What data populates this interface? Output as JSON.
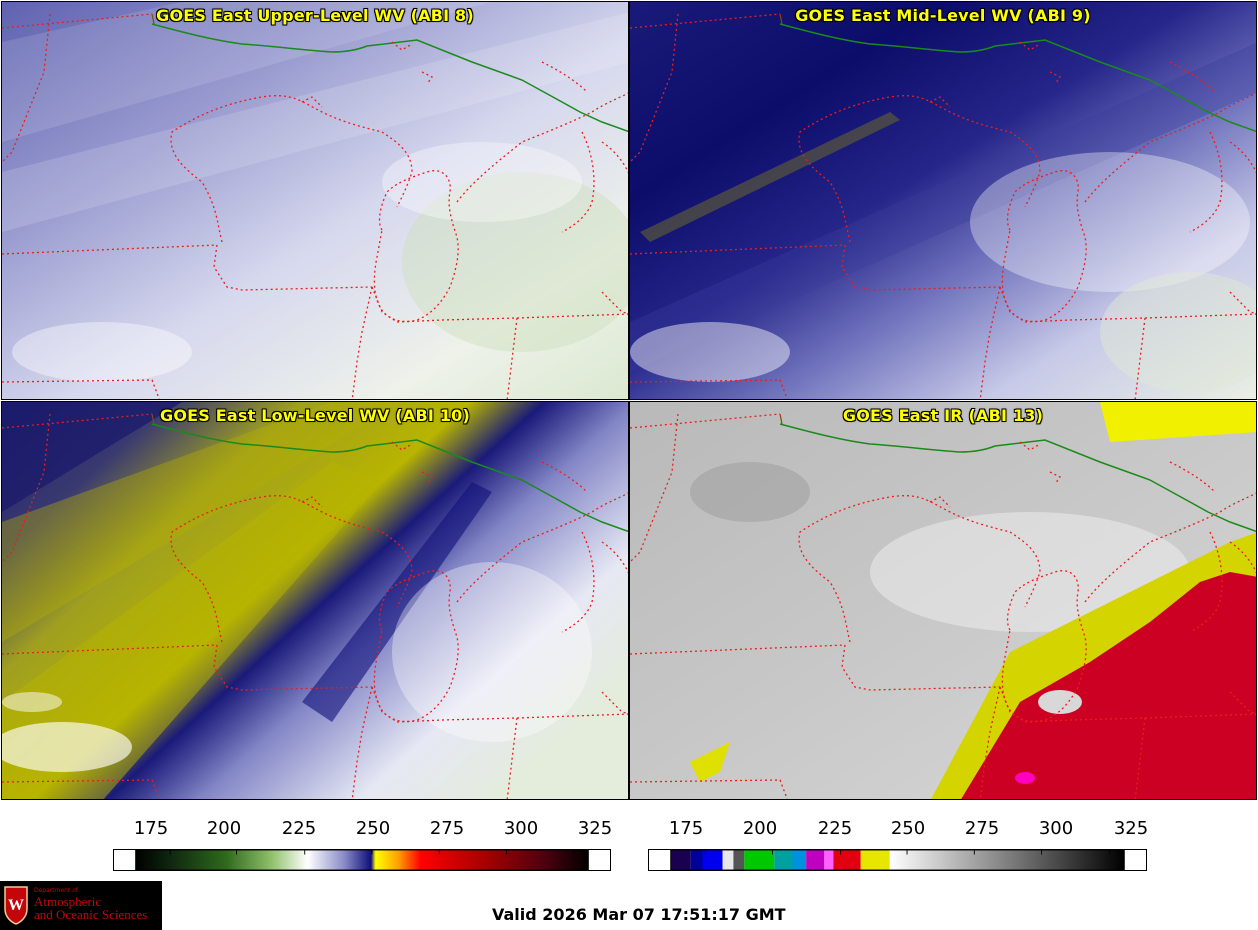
{
  "panels": {
    "upper_wv": {
      "title": "GOES East Upper-Level WV (ABI 8)"
    },
    "mid_wv": {
      "title": "GOES East Mid-Level WV (ABI 9)"
    },
    "low_wv": {
      "title": "GOES East Low-Level WV (ABI 10)"
    },
    "ir": {
      "title": "GOES East IR (ABI 13)"
    }
  },
  "colorbars": {
    "wv": {
      "ticks": [
        "175",
        "200",
        "225",
        "250",
        "275",
        "300",
        "325"
      ]
    },
    "ir": {
      "ticks": [
        "175",
        "200",
        "225",
        "250",
        "275",
        "300",
        "325"
      ]
    }
  },
  "logo": {
    "line1": "Department of",
    "line2": "Atmospheric",
    "line3": "and Oceanic Sciences",
    "seal_mark": "W"
  },
  "footer": {
    "valid": "Valid 2026 Mar 07 17:51:17 GMT"
  },
  "colors": {
    "title_text": "#ffff00",
    "state_border": "#ee1c1c",
    "intl_border": "#1a8a1a",
    "logo_red": "#c5050c"
  }
}
